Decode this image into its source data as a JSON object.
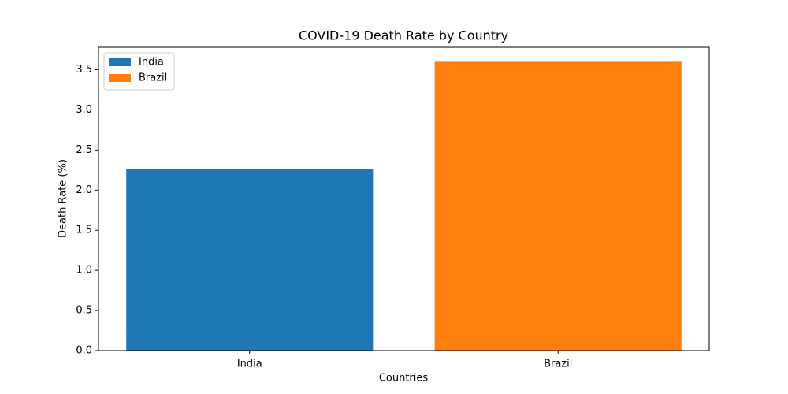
{
  "chart_data": {
    "type": "bar",
    "title": "COVID-19 Death Rate by Country",
    "x_label": "Countries",
    "y_label": "Death Rate (%)",
    "categories": [
      "India",
      "Brazil"
    ],
    "series": [
      {
        "name": "India",
        "color": "#1f77b4",
        "values": [
          2.26,
          null
        ]
      },
      {
        "name": "Brazil",
        "color": "#ff7f0e",
        "values": [
          null,
          3.6
        ]
      }
    ],
    "ylim": [
      0,
      3.78
    ],
    "yticks": [
      {
        "value": 0,
        "label": "0.0"
      },
      0.5,
      {
        "value": 1,
        "label": "1.0"
      },
      1.5,
      {
        "value": 2,
        "label": "2.0"
      },
      2.5,
      {
        "value": 3,
        "label": "3.0"
      },
      3.5
    ],
    "legend": "upper left",
    "grid": false
  }
}
